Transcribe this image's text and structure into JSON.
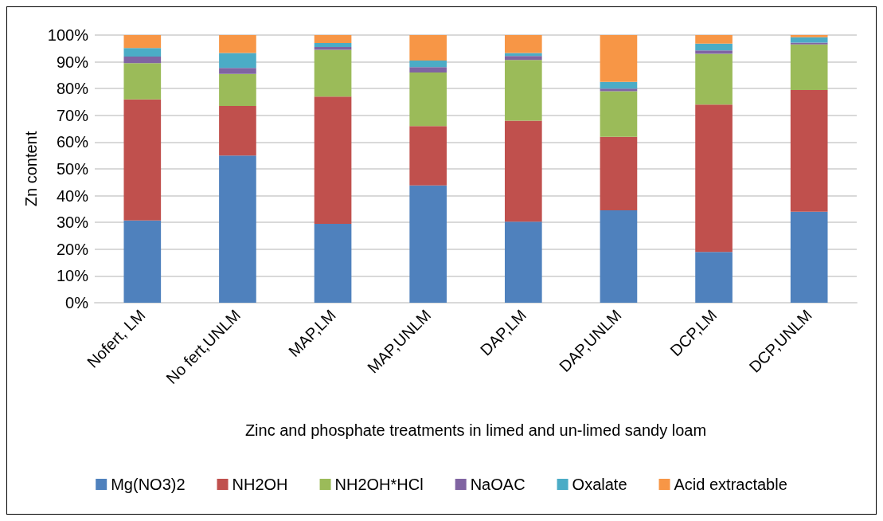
{
  "chart_data": {
    "type": "bar",
    "stacked": true,
    "xlabel": "Zinc and phosphate treatments in limed and un-limed sandy loam",
    "ylabel": "Zn content",
    "categories": [
      "Nofert, LM",
      "No fert,UNLM",
      "MAP,LM",
      "MAP,UNLM",
      "DAP,LM",
      "DAP,UNLM",
      "DCP,LM",
      "DCP,UNLM"
    ],
    "series": [
      {
        "name": "Mg(NO3)2",
        "color": "#4f81bd",
        "values": [
          30.7,
          55,
          29.5,
          43.8,
          30.3,
          34.5,
          19,
          34
        ]
      },
      {
        "name": "NH2OH",
        "color": "#c0504d",
        "values": [
          45.3,
          18.5,
          47.5,
          22.2,
          37.7,
          27.5,
          55,
          45.5
        ]
      },
      {
        "name": "NH2OH*HCl",
        "color": "#9bbb59",
        "values": [
          13.5,
          12,
          17.5,
          20,
          22.7,
          17,
          19,
          17
        ]
      },
      {
        "name": "NaOAC",
        "color": "#8064a2",
        "values": [
          2.5,
          2.2,
          1,
          2,
          1.5,
          1,
          1.3,
          0.7
        ]
      },
      {
        "name": "Oxalate",
        "color": "#4bacc6",
        "values": [
          3.2,
          5.6,
          1.5,
          2.5,
          1.1,
          2.5,
          2.5,
          2
        ]
      },
      {
        "name": "Acid extractable",
        "color": "#f79646",
        "values": [
          4.8,
          6.7,
          3,
          9.5,
          6.7,
          17.5,
          3.2,
          0.8
        ]
      }
    ],
    "ylim": [
      0,
      100
    ],
    "yticks": [
      {
        "value": 0,
        "label": "0%"
      },
      {
        "value": 10,
        "label": "10%"
      },
      {
        "value": 20,
        "label": "20%"
      },
      {
        "value": 30,
        "label": "30%"
      },
      {
        "value": 40,
        "label": "40%"
      },
      {
        "value": 50,
        "label": "50%"
      },
      {
        "value": 60,
        "label": "60%"
      },
      {
        "value": 70,
        "label": "70%"
      },
      {
        "value": 80,
        "label": "80%"
      },
      {
        "value": 90,
        "label": "90%"
      },
      {
        "value": 100,
        "label": "100%"
      }
    ],
    "grid": "y",
    "legend": "bottom"
  }
}
